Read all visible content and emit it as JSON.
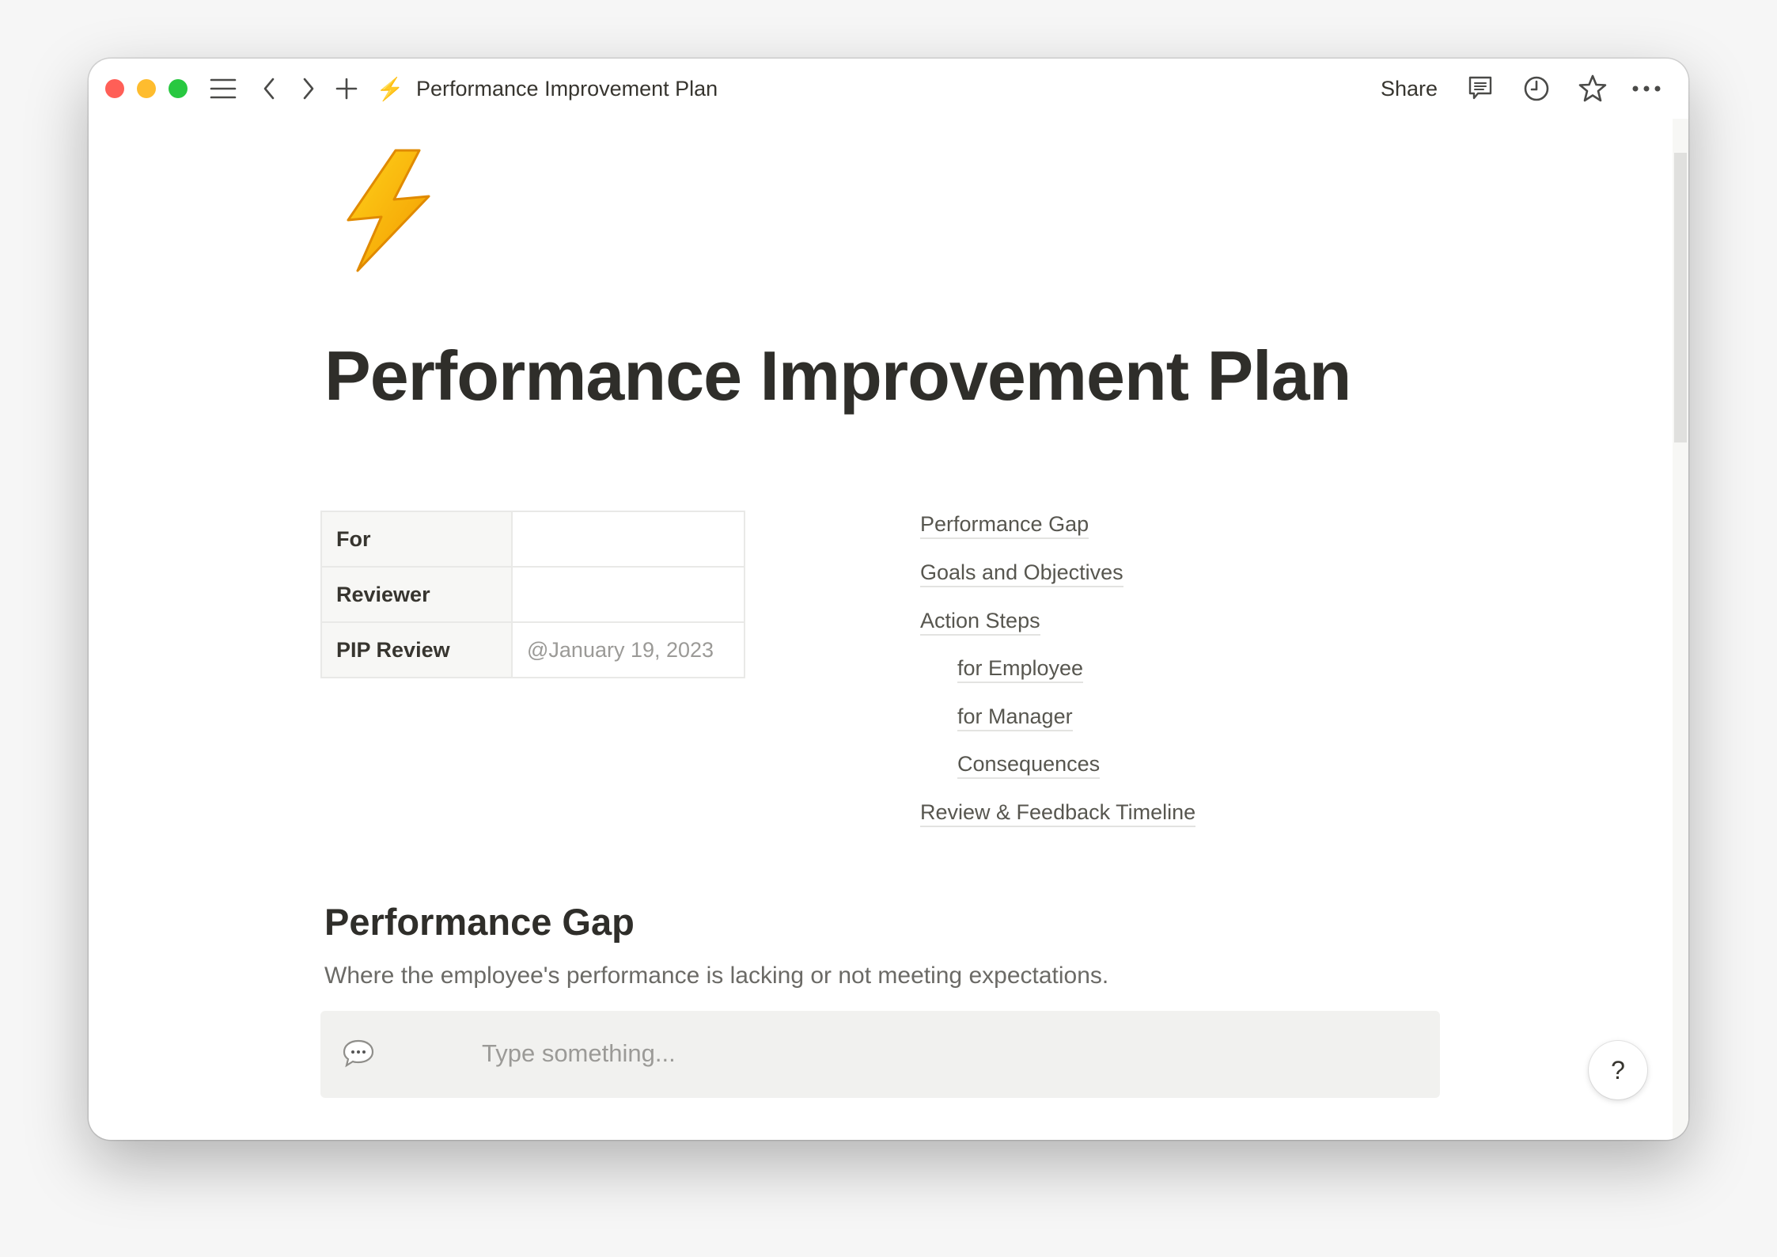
{
  "window": {
    "title": "Performance Improvement Plan",
    "share_label": "Share",
    "icon": "lightning-bolt-emoji",
    "traffic_lights": {
      "close": "#ff5f57",
      "minimize": "#febc2e",
      "zoom": "#28c840"
    }
  },
  "page": {
    "emoji": "⚡",
    "title": "Performance Improvement Plan"
  },
  "properties": [
    {
      "label": "For",
      "value": ""
    },
    {
      "label": "Reviewer",
      "value": ""
    },
    {
      "label": "PIP Review",
      "value": "@January 19, 2023"
    }
  ],
  "toc": [
    {
      "label": "Performance Gap",
      "level": 1
    },
    {
      "label": "Goals and Objectives",
      "level": 1
    },
    {
      "label": "Action Steps",
      "level": 1
    },
    {
      "label": "for Employee",
      "level": 2
    },
    {
      "label": "for Manager",
      "level": 2
    },
    {
      "label": "Consequences",
      "level": 2
    },
    {
      "label": "Review & Feedback Timeline",
      "level": 1
    }
  ],
  "section": {
    "heading": "Performance Gap",
    "description": "Where the employee's performance is lacking or not meeting expectations.",
    "callout_placeholder": "Type something...",
    "callout_icon": "speech-bubble-icon"
  },
  "help_label": "?"
}
